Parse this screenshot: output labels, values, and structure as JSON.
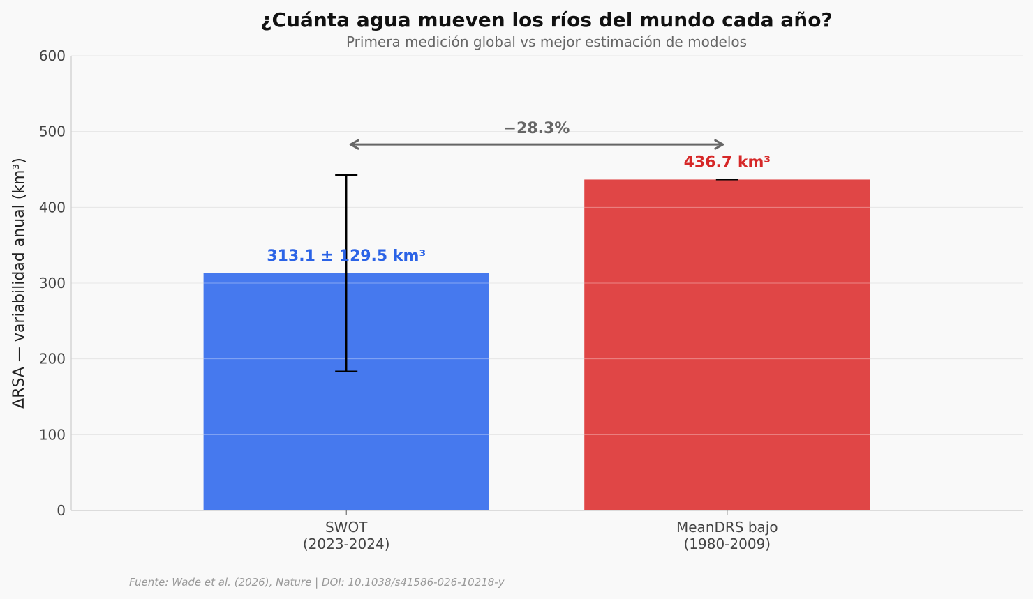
{
  "chart_data": {
    "type": "bar",
    "title": "¿Cuánta agua mueven los ríos del mundo cada año?",
    "subtitle": "Primera medición global vs mejor estimación de modelos",
    "xlabel": "",
    "ylabel": "ΔRSA — variabilidad anual (km³)",
    "ylim": [
      0,
      600
    ],
    "yticks": [
      0,
      100,
      200,
      300,
      400,
      500,
      600
    ],
    "grid": true,
    "categories": [
      {
        "line1": "SWOT",
        "line2": "(2023-2024)"
      },
      {
        "line1": "MeanDRS bajo",
        "line2": "(1980-2009)"
      }
    ],
    "values": [
      313.1,
      436.7
    ],
    "errors": [
      129.5,
      0
    ],
    "colors": [
      "#4679ee",
      "#e04646"
    ],
    "label_colors": [
      "#2b63e6",
      "#d62828"
    ],
    "data_labels": [
      "313.1 ± 129.5 km³",
      "436.7 km³"
    ],
    "comparison": {
      "label": "−28.3%",
      "arrow_y": 483
    },
    "source": "Fuente: Wade et al. (2026), Nature | DOI: 10.1038/s41586-026-10218-y"
  }
}
